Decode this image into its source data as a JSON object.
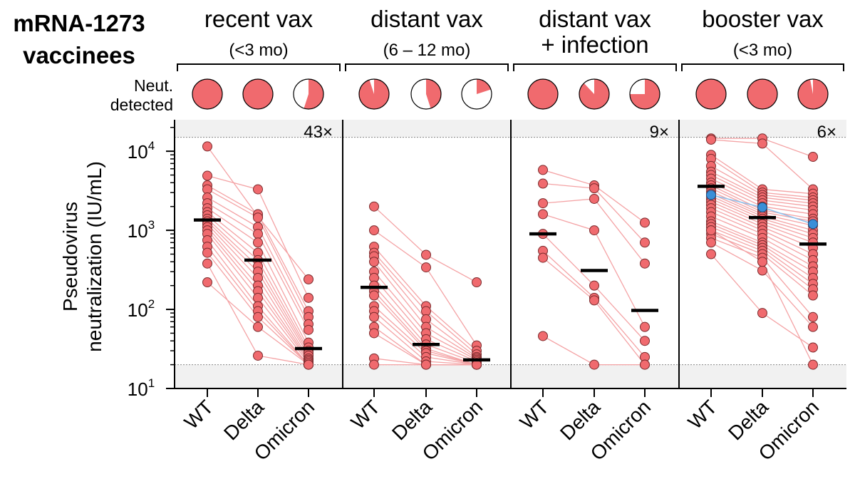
{
  "title_lines": [
    "mRNA-1273",
    "vaccinees"
  ],
  "neut_label_lines": [
    "Neut.",
    "detected"
  ],
  "chart_data": {
    "type": "scatter",
    "ylabel_lines": [
      "Pseudovirus",
      "neutralization (IU/mL)"
    ],
    "yscale": "log",
    "ylim": [
      10,
      25000
    ],
    "yticks": [
      {
        "value": 10,
        "base": "10",
        "exp": "1"
      },
      {
        "value": 100,
        "base": "10",
        "exp": "2"
      },
      {
        "value": 1000,
        "base": "10",
        "exp": "3"
      },
      {
        "value": 10000,
        "base": "10",
        "exp": "4"
      }
    ],
    "limits": {
      "lower": 20,
      "upper": 15000
    },
    "categories": [
      "WT",
      "Delta",
      "Omicron"
    ],
    "colors": {
      "point": "#f06a6e",
      "line": "#f4a3a5",
      "highlight": "#3a8fd8",
      "median": "#000000"
    },
    "groups": [
      {
        "title": "recent vax",
        "subtitle": "(<3 mo)",
        "fold_label": "43×",
        "neut_detected": [
          1.0,
          1.0,
          0.55
        ],
        "medians": [
          1350,
          420,
          32
        ],
        "subjects": [
          [
            11500,
            1500,
            240
          ],
          [
            4900,
            3300,
            140
          ],
          [
            3700,
            1600,
            95
          ],
          [
            3300,
            1450,
            80
          ],
          [
            2600,
            1100,
            65
          ],
          [
            2200,
            900,
            55
          ],
          [
            1900,
            700,
            38
          ],
          [
            1700,
            520,
            33
          ],
          [
            1550,
            420,
            30
          ],
          [
            1400,
            350,
            28
          ],
          [
            1300,
            300,
            26
          ],
          [
            1200,
            250,
            24
          ],
          [
            1100,
            200,
            23
          ],
          [
            1000,
            170,
            22
          ],
          [
            900,
            140,
            21
          ],
          [
            750,
            110,
            20
          ],
          [
            620,
            95,
            20
          ],
          [
            520,
            80,
            20
          ],
          [
            380,
            26,
            20
          ],
          [
            220,
            60,
            20
          ]
        ]
      },
      {
        "title": "distant vax",
        "subtitle": "(6 – 12 mo)",
        "fold_label": "",
        "neut_detected": [
          0.95,
          0.45,
          0.2
        ],
        "medians": [
          190,
          36,
          23
        ],
        "subjects": [
          [
            2000,
            490,
            220
          ],
          [
            1000,
            340,
            35
          ],
          [
            620,
            110,
            30
          ],
          [
            520,
            95,
            27
          ],
          [
            470,
            75,
            25
          ],
          [
            400,
            60,
            24
          ],
          [
            300,
            50,
            23
          ],
          [
            250,
            42,
            22
          ],
          [
            200,
            36,
            21
          ],
          [
            170,
            32,
            20
          ],
          [
            150,
            30,
            20
          ],
          [
            110,
            28,
            20
          ],
          [
            95,
            25,
            20
          ],
          [
            80,
            22,
            20
          ],
          [
            60,
            20,
            20
          ],
          [
            50,
            20,
            20
          ],
          [
            24,
            20,
            20
          ],
          [
            20,
            20,
            20
          ]
        ]
      },
      {
        "title": "distant vax",
        "subtitle": "+ infection",
        "fold_label": "9×",
        "neut_detected": [
          1.0,
          0.88,
          0.75
        ],
        "medians": [
          900,
          310,
          97
        ],
        "subjects": [
          [
            5800,
            3700,
            1250
          ],
          [
            3900,
            3400,
            700
          ],
          [
            2200,
            2500,
            380
          ],
          [
            1600,
            1000,
            60
          ],
          [
            900,
            200,
            40
          ],
          [
            550,
            140,
            25
          ],
          [
            450,
            130,
            20
          ],
          [
            46,
            20,
            20
          ]
        ]
      },
      {
        "title": "booster vax",
        "subtitle": "(<3 mo)",
        "fold_label": "6×",
        "neut_detected": [
          1.0,
          1.0,
          0.97
        ],
        "medians": [
          3600,
          1450,
          670
        ],
        "highlight": [
          2800,
          1950,
          1200
        ],
        "subjects": [
          [
            14500,
            14500,
            8500
          ],
          [
            14000,
            12500,
            3300
          ],
          [
            9000,
            3300,
            2900
          ],
          [
            8000,
            3000,
            2600
          ],
          [
            6500,
            2800,
            2400
          ],
          [
            5500,
            2600,
            2200
          ],
          [
            5000,
            2400,
            2000
          ],
          [
            4500,
            2200,
            1800
          ],
          [
            4000,
            2000,
            1600
          ],
          [
            3700,
            1800,
            1400
          ],
          [
            3400,
            1700,
            1300
          ],
          [
            3100,
            1600,
            1150
          ],
          [
            2900,
            1500,
            1000
          ],
          [
            2700,
            1400,
            900
          ],
          [
            2500,
            1300,
            800
          ],
          [
            2300,
            1200,
            700
          ],
          [
            2100,
            1100,
            600
          ],
          [
            1900,
            1000,
            500
          ],
          [
            1700,
            900,
            420
          ],
          [
            1500,
            800,
            350
          ],
          [
            1300,
            700,
            300
          ],
          [
            1200,
            650,
            250
          ],
          [
            1100,
            600,
            210
          ],
          [
            1000,
            550,
            180
          ],
          [
            900,
            500,
            150
          ],
          [
            800,
            450,
            80
          ],
          [
            700,
            310,
            60
          ],
          [
            500,
            90,
            33
          ],
          [
            1000,
            400,
            20
          ]
        ]
      }
    ]
  }
}
